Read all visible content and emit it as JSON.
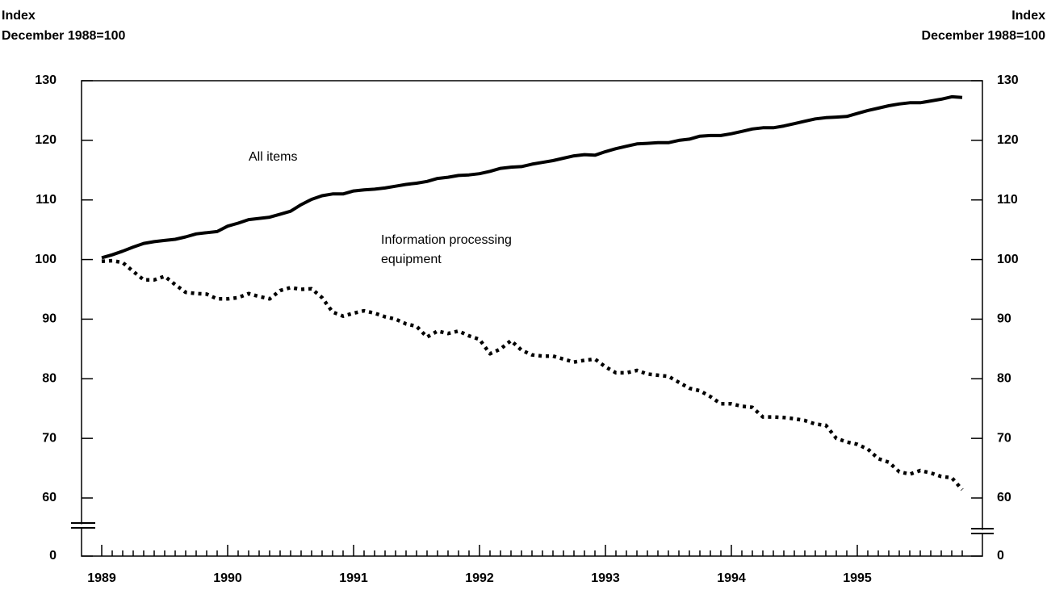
{
  "chart_data": {
    "type": "line",
    "y_axis_label": [
      "Index",
      "December 1988=100"
    ],
    "y2_axis_label": [
      "Index",
      "December 1988=100"
    ],
    "categories": [
      "1989",
      null,
      null,
      null,
      null,
      null,
      null,
      null,
      null,
      null,
      null,
      null,
      "1990",
      null,
      null,
      null,
      null,
      null,
      null,
      null,
      null,
      null,
      null,
      null,
      "1991",
      null,
      null,
      null,
      null,
      null,
      null,
      null,
      null,
      null,
      null,
      null,
      "1992",
      null,
      null,
      null,
      null,
      null,
      null,
      null,
      null,
      null,
      null,
      null,
      "1993",
      null,
      null,
      null,
      null,
      null,
      null,
      null,
      null,
      null,
      null,
      null,
      "1994",
      null,
      null,
      null,
      null,
      null,
      null,
      null,
      null,
      null,
      null,
      null,
      "1995",
      null,
      null,
      null,
      null,
      null,
      null,
      null,
      null,
      null,
      null
    ],
    "series": [
      {
        "name": "All items",
        "color": "#000000",
        "style": "solid",
        "values": [
          100.3,
          100.8,
          101.4,
          102.1,
          102.7,
          103.0,
          103.2,
          103.4,
          103.8,
          104.3,
          104.5,
          104.7,
          105.6,
          106.1,
          106.7,
          106.9,
          107.1,
          107.6,
          108.1,
          109.2,
          110.1,
          110.7,
          111.0,
          111.0,
          111.5,
          111.7,
          111.8,
          112.0,
          112.3,
          112.6,
          112.8,
          113.1,
          113.6,
          113.8,
          114.1,
          114.2,
          114.4,
          114.8,
          115.3,
          115.5,
          115.6,
          116.0,
          116.3,
          116.6,
          117.0,
          117.4,
          117.6,
          117.5,
          118.1,
          118.6,
          119.0,
          119.4,
          119.5,
          119.6,
          119.6,
          120.0,
          120.2,
          120.7,
          120.8,
          120.8,
          121.1,
          121.5,
          121.9,
          122.1,
          122.1,
          122.4,
          122.8,
          123.2,
          123.6,
          123.8,
          123.9,
          124.0,
          124.5,
          125.0,
          125.4,
          125.8,
          126.1,
          126.3,
          126.3,
          126.6,
          126.9,
          127.3,
          127.2
        ]
      },
      {
        "name": "Information processing equipment",
        "color": "#000000",
        "style": "dotted",
        "values": [
          99.7,
          99.8,
          99.5,
          98.0,
          96.6,
          96.6,
          97.2,
          95.8,
          94.5,
          94.3,
          94.2,
          93.4,
          93.4,
          93.6,
          94.3,
          93.8,
          93.4,
          94.8,
          95.3,
          95.0,
          95.1,
          93.6,
          91.2,
          90.5,
          91.0,
          91.4,
          91.0,
          90.4,
          90.0,
          89.2,
          88.8,
          87.0,
          88.0,
          87.6,
          88.0,
          87.2,
          86.6,
          84.2,
          85.0,
          86.4,
          84.8,
          84.0,
          83.8,
          83.8,
          83.3,
          82.8,
          83.1,
          83.3,
          82.0,
          81.0,
          81.0,
          81.4,
          80.8,
          80.6,
          80.4,
          79.4,
          78.4,
          78.0,
          77.0,
          75.8,
          75.8,
          75.4,
          75.2,
          73.6,
          73.6,
          73.5,
          73.3,
          73.0,
          72.4,
          72.2,
          70.0,
          69.4,
          69.0,
          68.2,
          66.6,
          66.0,
          64.4,
          64.0,
          64.6,
          64.2,
          63.6,
          63.4,
          61.4
        ]
      }
    ],
    "ylim": [
      0,
      130
    ],
    "yticks": [
      0,
      60,
      70,
      80,
      90,
      100,
      110,
      120,
      130
    ],
    "y2lim": [
      0,
      130
    ],
    "y2ticks": [
      0,
      60,
      70,
      80,
      90,
      100,
      110,
      120,
      130
    ],
    "y_axis_break": true,
    "grid": false
  }
}
